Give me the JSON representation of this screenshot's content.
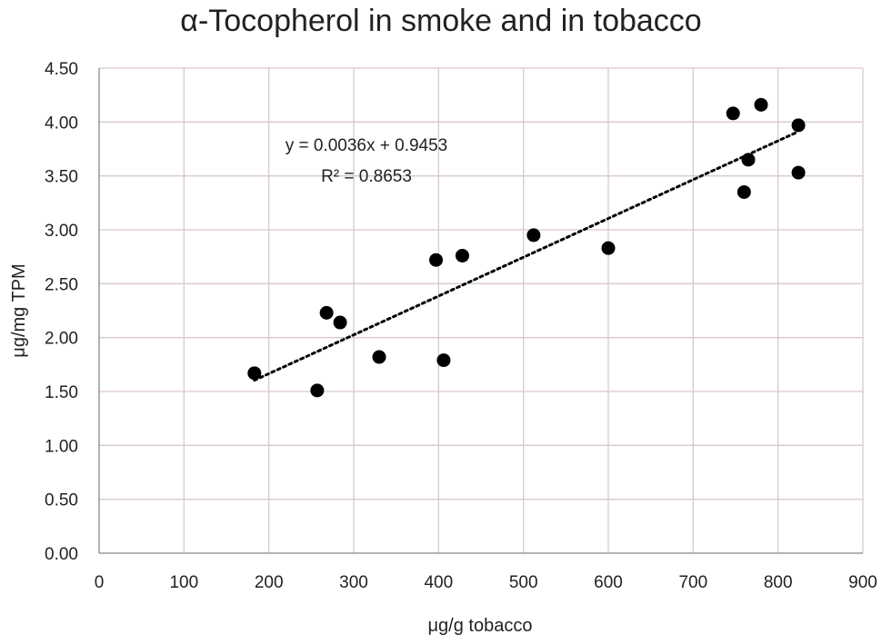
{
  "chart_data": {
    "type": "scatter",
    "title": "α-Tocopherol in smoke and in tobacco",
    "xlabel": "μg/g tobacco",
    "ylabel": "μg/mg  TPM",
    "xlim": [
      0,
      900
    ],
    "ylim": [
      0,
      4.5
    ],
    "x_ticks": [
      "0",
      "100",
      "200",
      "300",
      "400",
      "500",
      "600",
      "700",
      "800",
      "900"
    ],
    "y_ticks": [
      "0.00",
      "0.50",
      "1.00",
      "1.50",
      "2.00",
      "2.50",
      "3.00",
      "3.50",
      "4.00",
      "4.50"
    ],
    "grid": true,
    "points": [
      {
        "x": 183,
        "y": 1.67
      },
      {
        "x": 257,
        "y": 1.51
      },
      {
        "x": 268,
        "y": 2.23
      },
      {
        "x": 284,
        "y": 2.14
      },
      {
        "x": 330,
        "y": 1.82
      },
      {
        "x": 397,
        "y": 2.72
      },
      {
        "x": 406,
        "y": 1.79
      },
      {
        "x": 428,
        "y": 2.76
      },
      {
        "x": 512,
        "y": 2.95
      },
      {
        "x": 600,
        "y": 2.83
      },
      {
        "x": 747,
        "y": 4.08
      },
      {
        "x": 760,
        "y": 3.35
      },
      {
        "x": 765,
        "y": 3.65
      },
      {
        "x": 780,
        "y": 4.16
      },
      {
        "x": 824,
        "y": 3.97
      },
      {
        "x": 824,
        "y": 3.53
      }
    ],
    "trendline": {
      "slope": 0.0036,
      "intercept": 0.9453,
      "x_from": 183,
      "x_to": 824
    },
    "equation_text": "y = 0.0036x + 0.9453",
    "r2_text": "R² = 0.8653",
    "colors": {
      "points": "#000000",
      "grid": "#d9c8cc",
      "axis": "#888888"
    }
  }
}
